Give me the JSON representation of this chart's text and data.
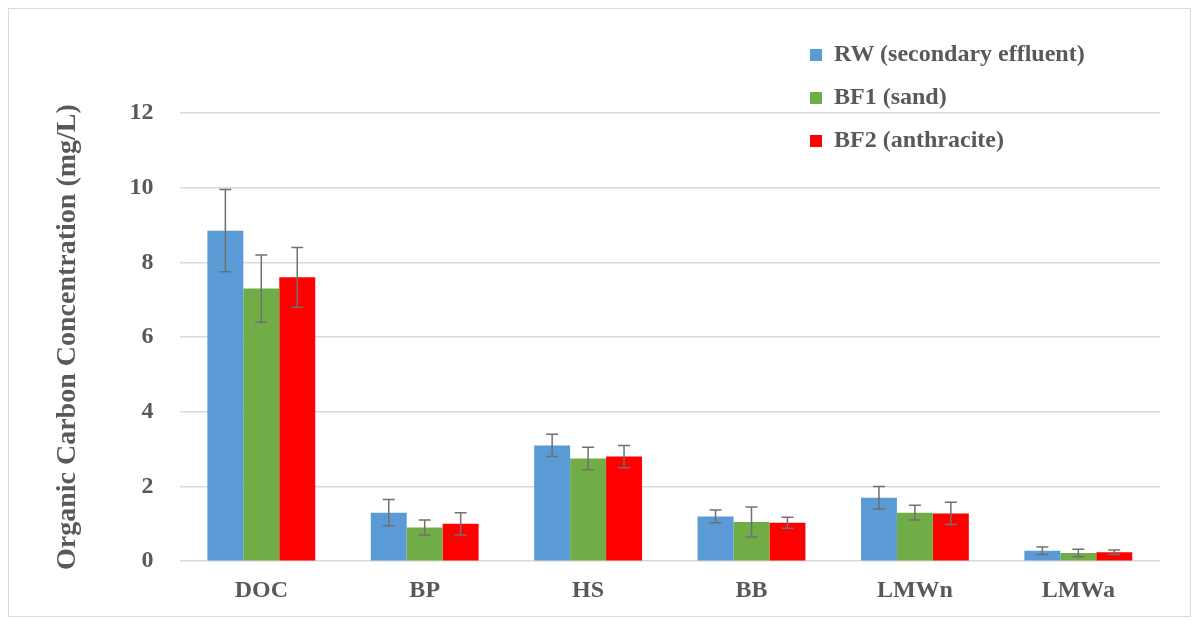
{
  "chart_data": {
    "type": "bar",
    "ylabel": "Organic Carbon Concentration (mg/L)",
    "categories": [
      "DOC",
      "BP",
      "HS",
      "BB",
      "LMWn",
      "LMWa"
    ],
    "series": [
      {
        "name": "RW (secondary effluent)",
        "color": "#5b9bd5",
        "values": [
          8.85,
          1.3,
          3.1,
          1.2,
          1.7,
          0.28
        ],
        "errors": [
          1.1,
          0.35,
          0.3,
          0.17,
          0.3,
          0.1
        ]
      },
      {
        "name": "BF1 (sand)",
        "color": "#70ad47",
        "values": [
          7.3,
          0.9,
          2.75,
          1.05,
          1.3,
          0.22
        ],
        "errors": [
          0.9,
          0.2,
          0.3,
          0.4,
          0.2,
          0.1
        ]
      },
      {
        "name": "BF2 (anthracite)",
        "color": "#ff0000",
        "values": [
          7.6,
          1.0,
          2.8,
          1.03,
          1.28,
          0.24
        ],
        "errors": [
          0.8,
          0.3,
          0.3,
          0.15,
          0.3,
          0.06
        ]
      }
    ],
    "ylim": [
      0,
      12
    ],
    "yticks": [
      0,
      2,
      4,
      6,
      8,
      10,
      12
    ],
    "grid": "y",
    "legend": "top right"
  }
}
